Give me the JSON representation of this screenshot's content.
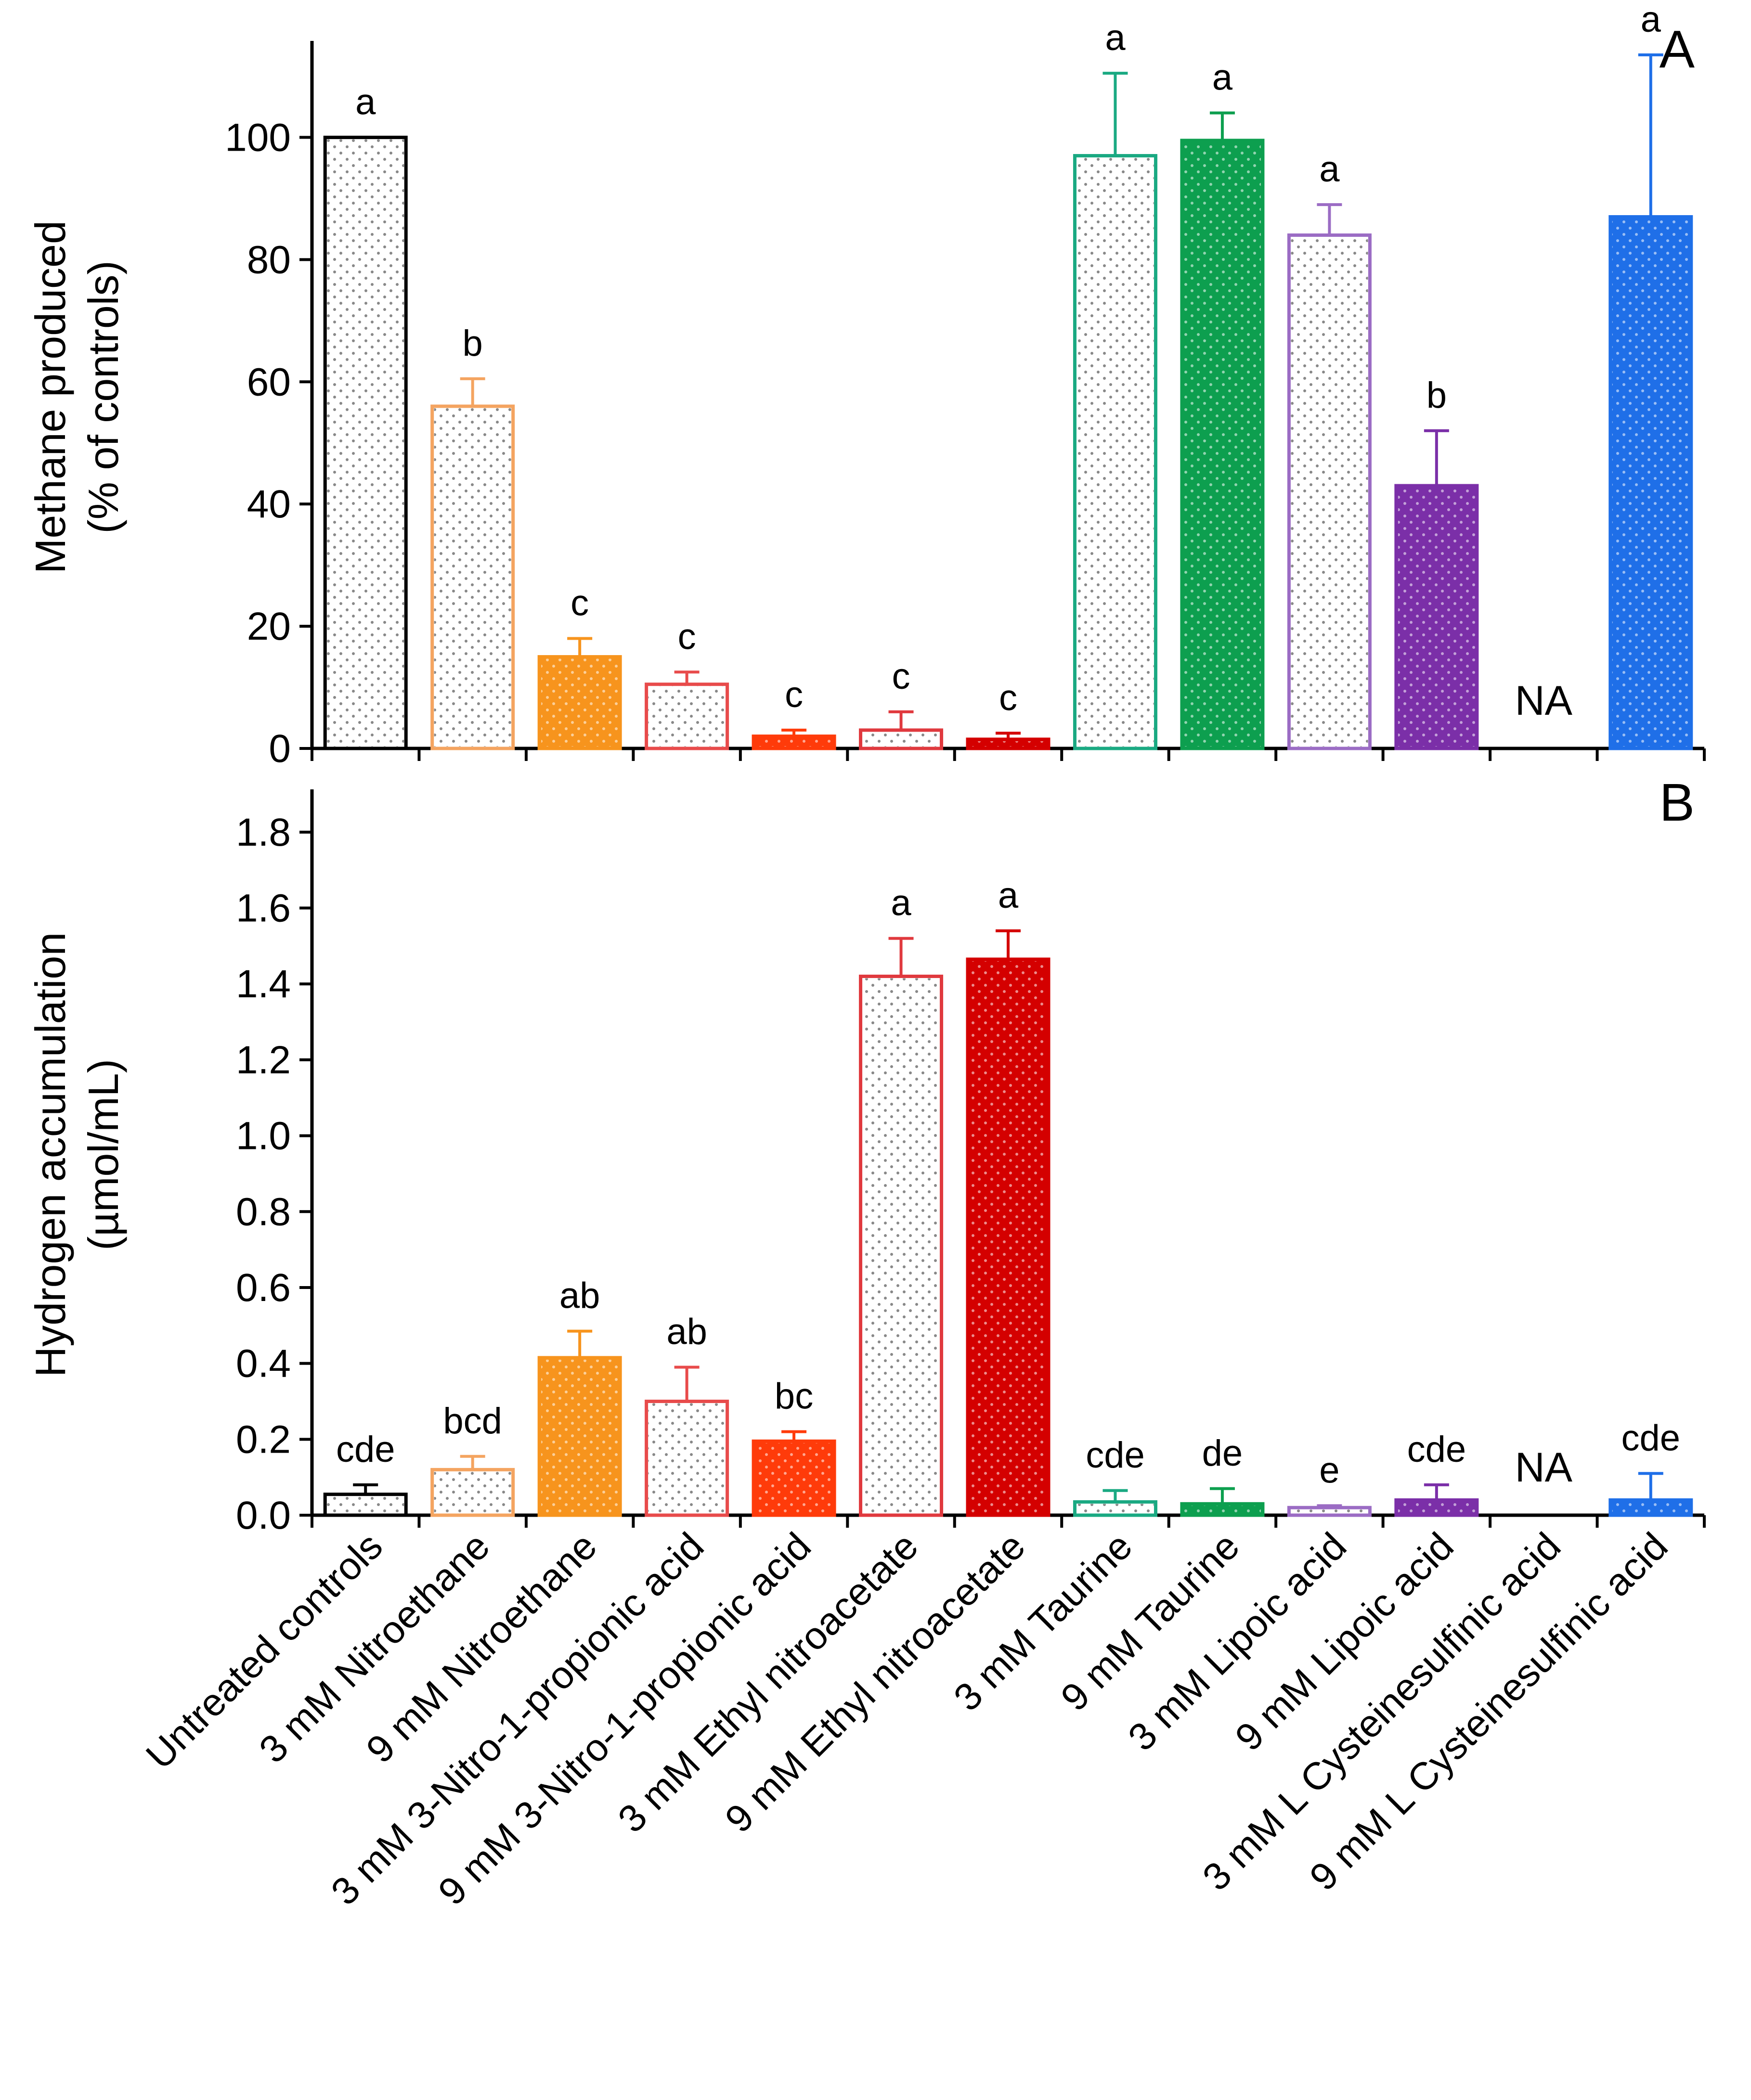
{
  "chart_data": [
    {
      "type": "bar",
      "panel": "A",
      "ylabel_line1": "Methane produced",
      "ylabel_line2": "(% of controls)",
      "ylim": [
        0,
        115
      ],
      "yticks": [
        "0",
        "20",
        "40",
        "60",
        "80",
        "100"
      ],
      "ytick_values": [
        0,
        20,
        40,
        60,
        80,
        100
      ],
      "values": [
        100,
        56,
        15,
        10.5,
        2,
        3,
        1.5,
        97,
        99.5,
        84,
        43,
        null,
        87
      ],
      "errors": [
        0,
        4.5,
        3,
        2,
        1,
        3,
        1,
        13.5,
        4.5,
        5,
        9,
        null,
        26.5
      ],
      "labels": [
        "a",
        "b",
        "c",
        "c",
        "c",
        "c",
        "c",
        "a",
        "a",
        "a",
        "b",
        "NA",
        "a"
      ]
    },
    {
      "type": "bar",
      "panel": "B",
      "ylabel_line1": "Hydrogen accumulation",
      "ylabel_line2": "(µmol/mL)",
      "ylim": [
        0,
        1.9
      ],
      "yticks": [
        "0.0",
        "0.2",
        "0.4",
        "0.6",
        "0.8",
        "1.0",
        "1.2",
        "1.4",
        "1.6",
        "1.8"
      ],
      "ytick_values": [
        0,
        0.2,
        0.4,
        0.6,
        0.8,
        1.0,
        1.2,
        1.4,
        1.6,
        1.8
      ],
      "values": [
        0.055,
        0.12,
        0.415,
        0.3,
        0.195,
        1.42,
        1.465,
        0.035,
        0.03,
        0.02,
        0.04,
        null,
        0.04
      ],
      "errors": [
        0.025,
        0.035,
        0.07,
        0.09,
        0.025,
        0.1,
        0.075,
        0.03,
        0.04,
        0.005,
        0.04,
        null,
        0.07
      ],
      "labels": [
        "cde",
        "bcd",
        "ab",
        "ab",
        "bc",
        "a",
        "a",
        "cde",
        "de",
        "e",
        "cde",
        "NA",
        "cde"
      ]
    }
  ],
  "categories": [
    "Untreated controls",
    "3 mM Nitroethane",
    "9 mM Nitroethane",
    "3 mM 3-Nitro-1-propionic acid",
    "9 mM 3-Nitro-1-propionic acid",
    "3 mM Ethyl nitroacetate",
    "9 mM Ethyl nitroacetate",
    "3 mM Taurine",
    "9 mM Taurine",
    "3 mM Lipoic acid",
    "9 mM Lipoic acid",
    "3 mM L Cysteinesulfinic acid",
    "9 mM L Cysteinesulfinic acid"
  ],
  "styles": [
    {
      "color": "#000000",
      "filled": false
    },
    {
      "color": "#f4a460",
      "filled": false
    },
    {
      "color": "#f7941d",
      "filled": true
    },
    {
      "color": "#e84b4b",
      "filled": false
    },
    {
      "color": "#ff3b0a",
      "filled": true
    },
    {
      "color": "#e0393e",
      "filled": false
    },
    {
      "color": "#d40000",
      "filled": true
    },
    {
      "color": "#1aa982",
      "filled": false
    },
    {
      "color": "#0d9f4f",
      "filled": true
    },
    {
      "color": "#9b6cc4",
      "filled": false
    },
    {
      "color": "#7b2fa8",
      "filled": true
    },
    {
      "color": "#999999",
      "filled": false
    },
    {
      "color": "#1f6fe8",
      "filled": true
    }
  ]
}
